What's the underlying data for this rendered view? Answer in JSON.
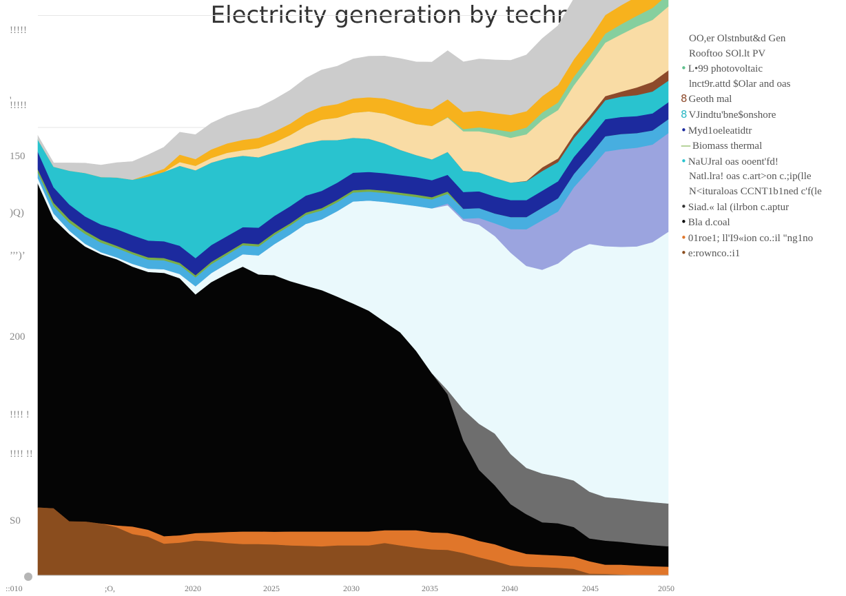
{
  "chart_data": {
    "type": "area",
    "title": "Electricity generation by technology",
    "x": [
      2010,
      2011,
      2012,
      2013,
      2014,
      2015,
      2016,
      2017,
      2018,
      2019,
      2020,
      2021,
      2022,
      2023,
      2024,
      2025,
      2026,
      2027,
      2028,
      2029,
      2030,
      2031,
      2032,
      2033,
      2034,
      2035,
      2036,
      2037,
      2038,
      2039,
      2040,
      2041,
      2042,
      2043,
      2044,
      2045,
      2046,
      2047,
      2048,
      2049,
      2050
    ],
    "x_tick_labels": [
      "::010",
      ";O,",
      "2020",
      "2025",
      "2030",
      "2035",
      "2040",
      "2045",
      "2050"
    ],
    "y_tick_labels": [
      "S0",
      "!!!! !!",
      "!!!! !",
      "200",
      "’’’)’",
      ")Q)",
      "150",
      "!!!!!",
      "'",
      "!!!!!"
    ],
    "ylim": [
      0,
      250
    ],
    "series": [
      {
        "name": "e:rownco.:i1",
        "color": "#8a4d1e",
        "values": [
          30.4,
          30,
          24.2,
          24.1,
          23.2,
          21.5,
          18.5,
          17.3,
          14.2,
          14.6,
          15.6,
          15.2,
          14.5,
          14,
          14,
          13.8,
          13.4,
          13.2,
          13,
          13.4,
          13.4,
          13.4,
          14.5,
          13.4,
          12.4,
          11.6,
          11.4,
          10,
          8.1,
          6.4,
          4.4,
          3.9,
          3.7,
          3.4,
          2.9,
          0.8,
          0.7,
          0.4,
          0.2,
          0.1,
          0.1
        ]
      },
      {
        "name": "01roe1; ll'I9«ion co.:il \"ng1no",
        "color": "#e0762a",
        "values": [
          0,
          0,
          0,
          0,
          0,
          0.8,
          3.3,
          3.1,
          3.3,
          3.3,
          3.3,
          3.9,
          4.9,
          5.6,
          5.6,
          5.7,
          6.2,
          6.4,
          6.6,
          6.2,
          6.2,
          6.2,
          5.7,
          6.8,
          7.8,
          7.6,
          7.6,
          7.6,
          7.3,
          7.5,
          7.1,
          5.7,
          5.5,
          5.5,
          5.5,
          5.5,
          4.1,
          4.4,
          4.2,
          4,
          3.8
        ]
      },
      {
        "name": "Bla d.coal",
        "color": "#050505",
        "values": [
          144.6,
          129.2,
          128.2,
          122.8,
          120.2,
          118.9,
          116.1,
          115.1,
          117.6,
          114.8,
          106.6,
          111.9,
          115.3,
          118.3,
          114.8,
          114.6,
          111.8,
          109.8,
          107.8,
          104.9,
          101.8,
          98.6,
          93.1,
          88.3,
          80.1,
          71.1,
          61.9,
          42.6,
          31.7,
          26.3,
          20.3,
          17.7,
          14.5,
          14.4,
          13.2,
          10.2,
          10.7,
          10.2,
          9.8,
          9.4,
          9.1
        ]
      },
      {
        "name": "Siad.« lal (ilrbon c.aptur",
        "color": "#6e6e6e",
        "values": [
          0,
          0,
          0,
          0,
          0,
          0,
          0,
          0,
          0,
          0,
          0,
          0,
          0,
          0,
          0,
          0,
          0,
          0,
          0,
          0,
          0,
          0,
          0,
          0,
          0,
          0,
          1.8,
          13.9,
          20.6,
          23.1,
          22.4,
          20.7,
          21.8,
          20.9,
          20.8,
          20.9,
          19.5,
          19.3,
          19.2,
          19.2,
          19.1
        ]
      },
      {
        "name": "Natl.lra! oas c.art>on c.;ip(lle",
        "color": "#eaf9fc",
        "values": [
          2.4,
          2.4,
          1.5,
          1.2,
          0.9,
          0.8,
          1.2,
          1.5,
          1.6,
          1.9,
          3.6,
          4,
          4.5,
          5.5,
          8.5,
          13.8,
          20.8,
          27.6,
          31.6,
          38.2,
          45.6,
          49.2,
          53.5,
          57.4,
          64.7,
          73.6,
          82.6,
          84.3,
          88.9,
          88.2,
          89.9,
          90.2,
          91,
          95.1,
          102.6,
          110.6,
          112,
          112.4,
          113.5,
          116.1,
          121.3
        ]
      },
      {
        "name": "N<ituraloas CCNT1b1ned c'f(le",
        "color": "#9ba4df",
        "values": [
          0,
          0,
          0,
          0,
          0,
          0,
          0,
          0,
          0,
          0,
          0,
          0,
          0,
          0,
          0,
          0,
          0,
          0,
          0,
          0,
          0,
          0,
          0,
          0,
          0,
          0,
          0.8,
          0.9,
          3,
          5.7,
          10.5,
          16.4,
          22.1,
          23.2,
          28.3,
          33.1,
          42.3,
          43.6,
          44.1,
          43.6,
          44.1
        ]
      },
      {
        "name": "NaUJral oas ooent'fd!",
        "color": "#47aee0",
        "values": [
          2.4,
          3.3,
          3.6,
          4.4,
          4.3,
          4.2,
          4.3,
          4,
          4,
          4,
          4,
          4,
          4,
          4,
          4,
          4.1,
          4,
          4,
          4,
          4,
          4,
          4,
          4,
          4,
          4,
          4,
          4.3,
          4.4,
          4.4,
          4.4,
          5.4,
          5.4,
          5.6,
          5.9,
          5.9,
          6.3,
          6.8,
          6.8,
          6.5,
          6.3,
          6.2
        ]
      },
      {
        "name": "Biomass thermal",
        "color": "#7aad46",
        "values": [
          1.5,
          1.5,
          1.5,
          1.3,
          1.2,
          1,
          1,
          1,
          1,
          1,
          1,
          1,
          1,
          1,
          1,
          1,
          1,
          1,
          1,
          1,
          1,
          1,
          1,
          1,
          1,
          1,
          1,
          0,
          0,
          0,
          0,
          0,
          0,
          0,
          0,
          0,
          0,
          0,
          0,
          0,
          0
        ]
      },
      {
        "name": "•Myd1oeleatidtr",
        "color": "#1c2a9e",
        "values": [
          7.8,
          6.9,
          6.6,
          6.5,
          6.9,
          7.4,
          7.5,
          7.5,
          7.5,
          7.6,
          7.6,
          7.5,
          7.3,
          7.1,
          7.4,
          7.5,
          7.6,
          7.6,
          7.7,
          7.7,
          7.8,
          7.8,
          7.8,
          7.8,
          7.8,
          7.6,
          7.5,
          7.5,
          7.5,
          7.6,
          7.6,
          7.6,
          7.6,
          7.6,
          7.6,
          7.6,
          7.6,
          7.6,
          7.6,
          7.6,
          7.6
        ]
      },
      {
        "name": "VJindtu'bne$onshore",
        "color": "#29c3cf",
        "values": [
          5.5,
          9.2,
          15.1,
          19.4,
          21.2,
          23.1,
          24.8,
          28.6,
          31,
          35.7,
          39.2,
          36.8,
          34.8,
          31.9,
          31.4,
          28.3,
          25.9,
          23.4,
          22.6,
          19,
          15.6,
          14.8,
          13.3,
          11.3,
          9.9,
          9.3,
          10.2,
          9.5,
          8.5,
          8.3,
          7.8,
          8.4,
          8.8,
          8.6,
          8.4,
          8.4,
          8.5,
          9.1,
          9.4,
          9.8,
          9.6
        ]
      },
      {
        "name": "Geoth mal",
        "color": "#8d4a2b",
        "values": [
          0,
          0,
          0,
          0,
          0,
          0,
          0,
          0,
          0,
          0,
          0,
          0,
          0,
          0,
          0,
          0,
          0,
          0,
          0,
          0,
          0,
          0,
          0,
          0,
          0,
          0,
          0,
          0,
          0,
          0,
          0,
          0.2,
          1.6,
          1.6,
          1.7,
          1.7,
          1.8,
          2.2,
          3.4,
          4.3,
          4.6
        ]
      },
      {
        "name": "lnct9r.attd $Olar and oas",
        "color": "#f9dca5",
        "values": [
          0,
          0,
          0,
          0,
          0,
          0,
          0,
          0,
          0,
          1.7,
          2,
          2.1,
          2.4,
          2.5,
          4.1,
          4.5,
          5.9,
          7.7,
          9.2,
          10,
          11.2,
          12.2,
          13.3,
          13.8,
          13.9,
          14.9,
          15.4,
          17.6,
          18.3,
          19.6,
          20,
          20.8,
          21.2,
          21.6,
          21.9,
          23.1,
          23.9,
          25.6,
          27.2,
          27.7,
          28.6
        ]
      },
      {
        "name": "L•99 photovoltaic",
        "color": "#86cf9e",
        "values": [
          0,
          0,
          0,
          0,
          0,
          0,
          0,
          0,
          0,
          0,
          0,
          0,
          0,
          0,
          0,
          0,
          0,
          0,
          0,
          0,
          0,
          0,
          0,
          0,
          0,
          0,
          0.2,
          1,
          1.8,
          2.1,
          2.7,
          3,
          3.3,
          3.4,
          3.8,
          3.5,
          4,
          4.5,
          4.8,
          5.3,
          5.5
        ]
      },
      {
        "name": "Rooftoo SOl.lt PV",
        "color": "#f7b21d",
        "values": [
          0,
          0,
          0,
          0,
          0,
          0,
          0,
          1,
          1.4,
          3.3,
          3,
          3.8,
          4.2,
          4.6,
          4.6,
          4.9,
          5.1,
          5.7,
          5.9,
          6.1,
          6.4,
          6.3,
          6.8,
          7.4,
          7.4,
          7.5,
          7.9,
          7.6,
          7.4,
          7.3,
          7.5,
          7.3,
          7.3,
          7.8,
          7.8,
          7.8,
          8.3,
          8.5,
          8.6,
          9.2,
          9.6
        ]
      },
      {
        "name": "OO,er Olstnbut&d Gen",
        "color": "#cccccc",
        "values": [
          1.7,
          1.7,
          3.5,
          4.4,
          5.3,
          6.6,
          8.1,
          8.7,
          9.6,
          10,
          10.9,
          11.7,
          12.3,
          12.9,
          13.6,
          14.3,
          14.9,
          15.6,
          16.3,
          16.9,
          17.6,
          18.3,
          18.9,
          19.6,
          20.3,
          21,
          21.7,
          22.4,
          23.1,
          23.7,
          24.4,
          25.1,
          25.7,
          26.4,
          27,
          27.7,
          28.4,
          29.1,
          29.7,
          30.4,
          31.1
        ]
      }
    ],
    "legend": [
      {
        "marker": "",
        "text": "OO,er Olstnbut&d Gen",
        "indent": true,
        "color": ""
      },
      {
        "marker": "",
        "text": "Rooftoo SOl.lt PV",
        "indent": true,
        "color": ""
      },
      {
        "marker": "•",
        "text": "L•99 photovoltaic",
        "indent": false,
        "color": "#5fbf8c"
      },
      {
        "marker": "",
        "text": "lnct9r.attd $Olar and oas",
        "indent": true,
        "color": ""
      },
      {
        "marker": "8",
        "text": "Geoth mal",
        "indent": false,
        "color": "#8d4a2b"
      },
      {
        "marker": "8",
        "text": "VJindtu'bne$onshore",
        "indent": false,
        "color": "#29b7c4"
      },
      {
        "marker": "•",
        "text": "Myd1oeleatidtr",
        "indent": false,
        "color": "#1c2a9e"
      },
      {
        "marker": "—",
        "text": "Biomass thermal",
        "indent": false,
        "color": "#7aad46"
      },
      {
        "marker": "•",
        "text": "NaUJral oas ooent'fd!",
        "indent": false,
        "color": "#29c3cf"
      },
      {
        "marker": "",
        "text": "Natl.lra! oas c.art>on c.;ip(lle",
        "indent": true,
        "color": ""
      },
      {
        "marker": "",
        "text": "N<ituraloas CCNT1b1ned c'f(le",
        "indent": true,
        "color": ""
      },
      {
        "marker": "•",
        "text": "Siad.« lal (ilrbon c.aptur",
        "indent": false,
        "color": "#333333"
      },
      {
        "marker": "•",
        "text": "Bla d.coal",
        "indent": false,
        "color": "#000000"
      },
      {
        "marker": "•",
        "text": "01roe1; ll'I9«ion co.:il \"ng1no",
        "indent": false,
        "color": "#e0762a"
      },
      {
        "marker": "•",
        "text": "e:rownco.:i1",
        "indent": false,
        "color": "#8a4d1e"
      }
    ],
    "grid": true,
    "legend_position": "right"
  }
}
